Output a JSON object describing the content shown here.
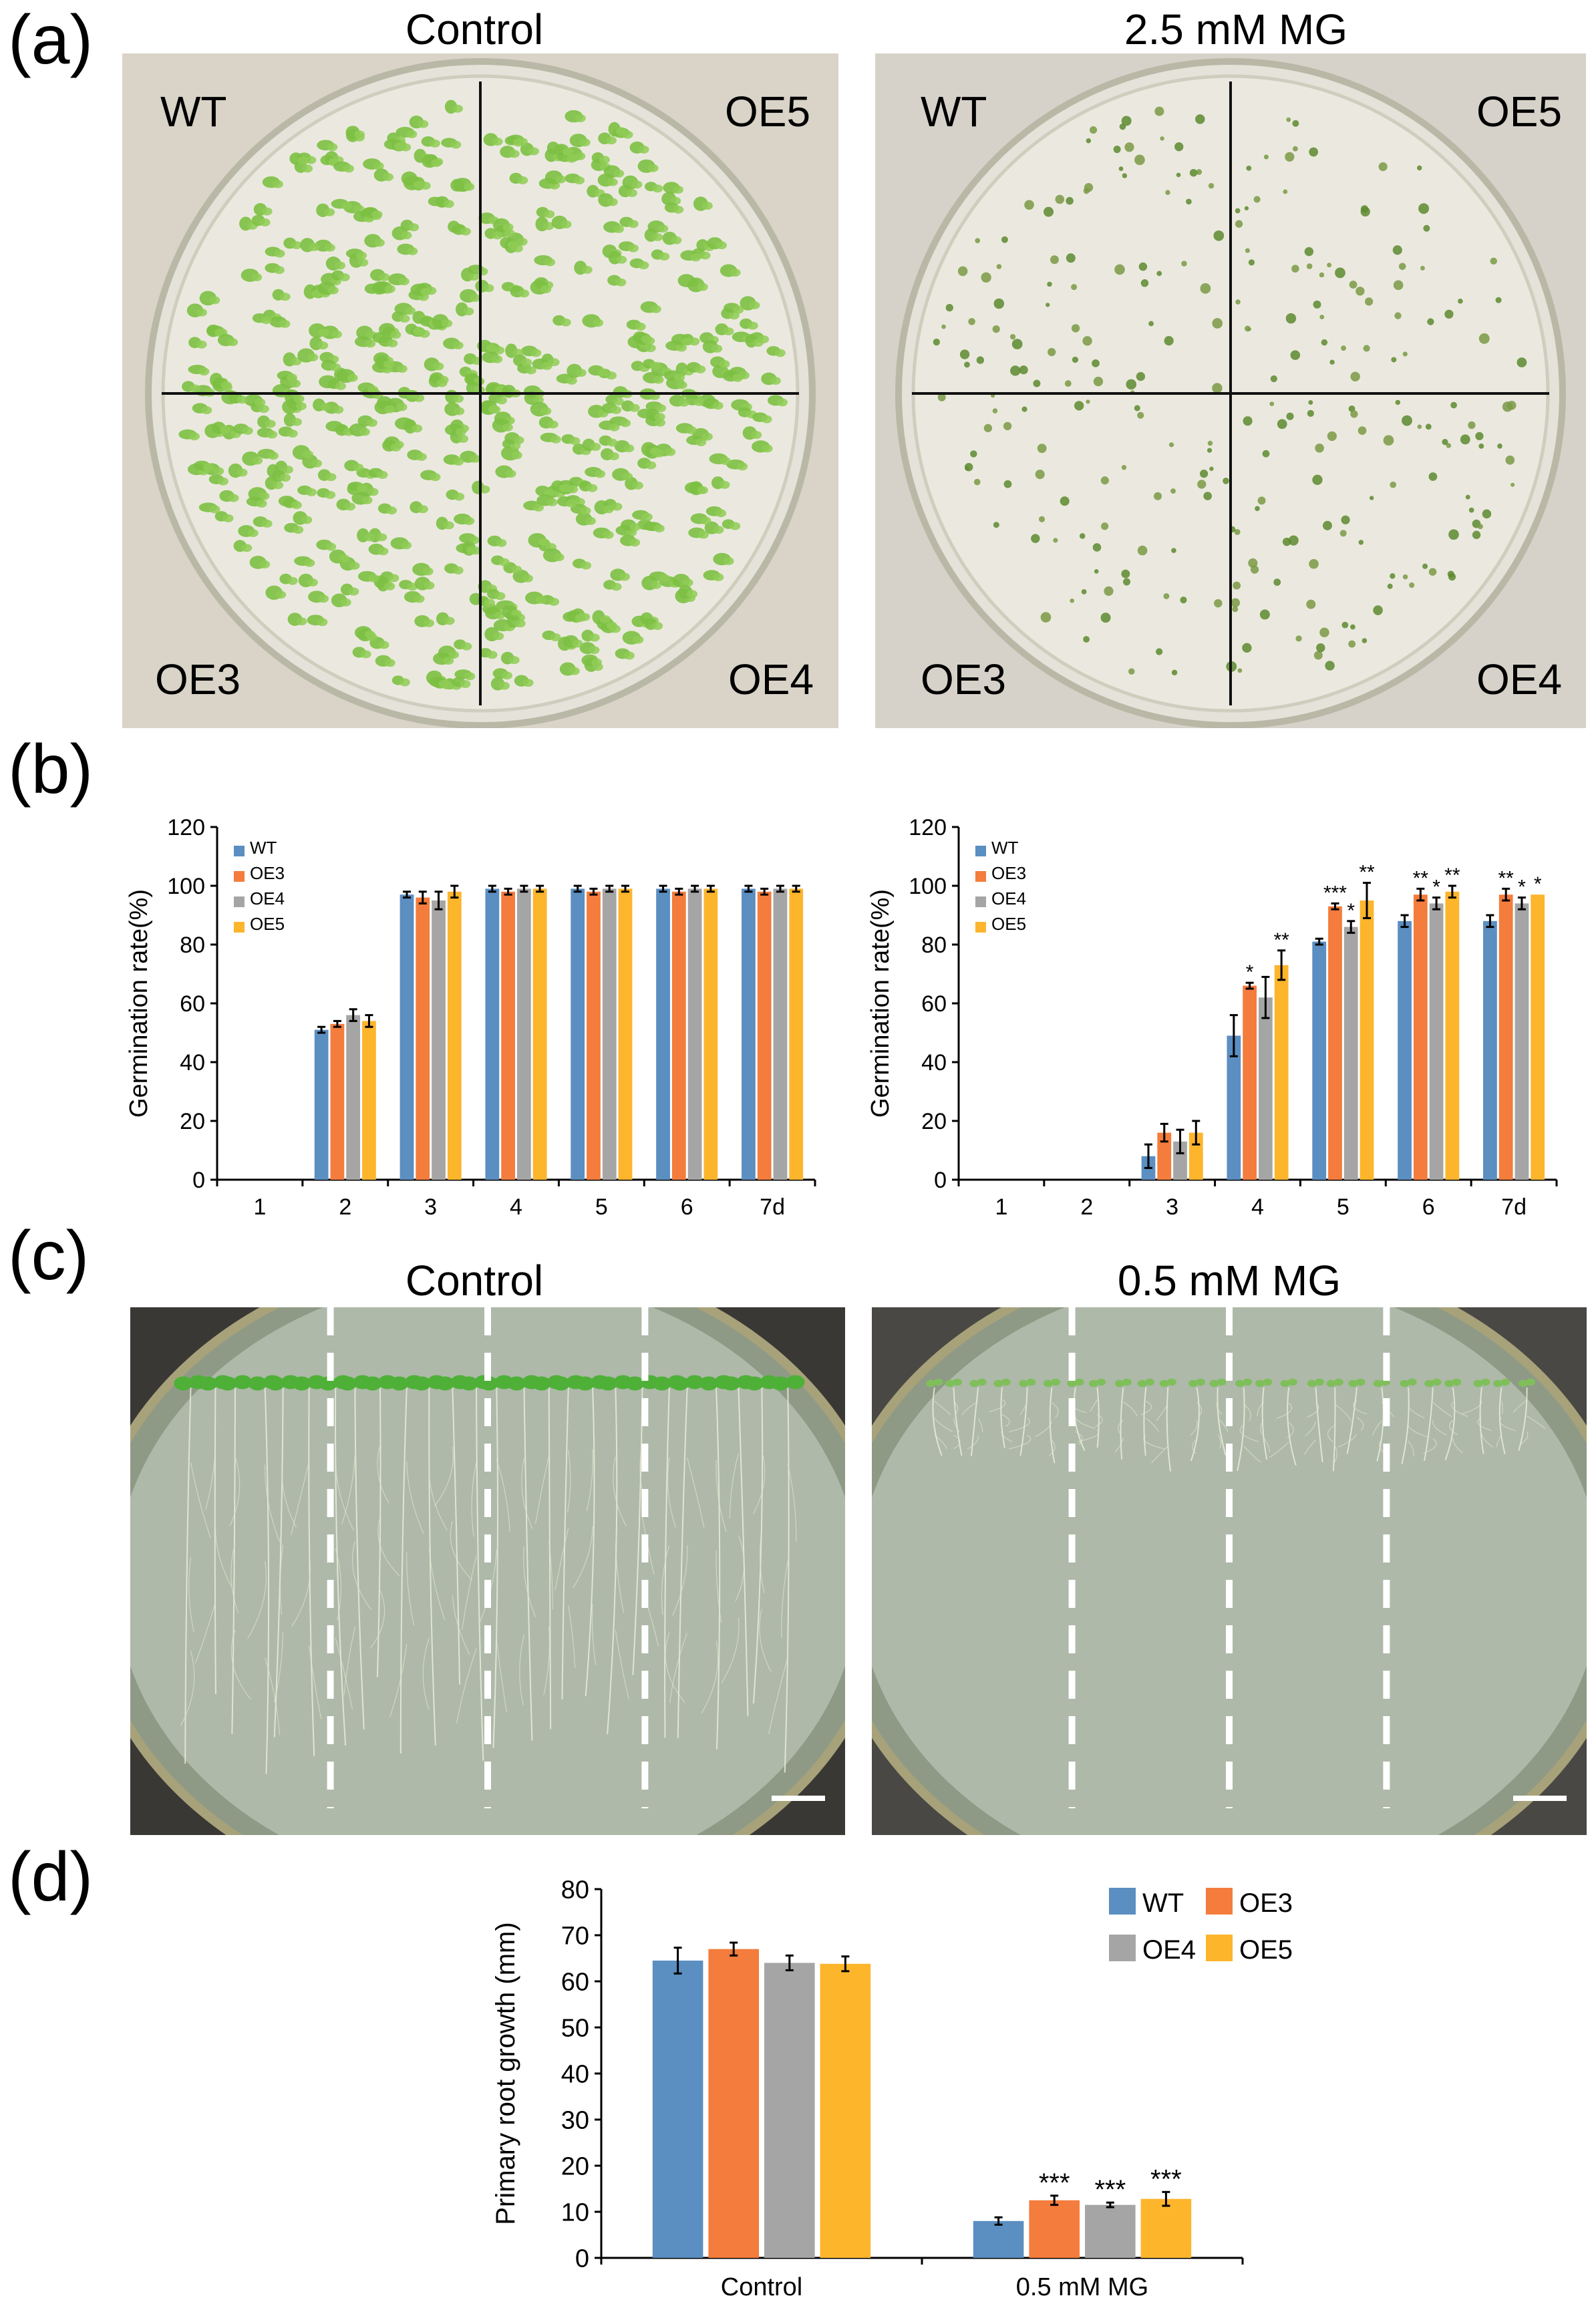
{
  "figure": {
    "panels": {
      "a": {
        "letter": "(a)",
        "plates": [
          {
            "title": "Control",
            "quadrants": [
              "WT",
              "OE5",
              "OE3",
              "OE4"
            ],
            "seedling_state": "green-expanded",
            "background": "#d9d3c8"
          },
          {
            "title": "2.5 mM MG",
            "quadrants": [
              "WT",
              "OE5",
              "OE3",
              "OE4"
            ],
            "seedling_state": "sparse-small",
            "background": "#d7d2c9"
          }
        ]
      },
      "b": {
        "letter": "(b)"
      },
      "c": {
        "letter": "(c)",
        "plates": [
          {
            "title": "Control",
            "background": "#3a3835",
            "root_state": "long"
          },
          {
            "title": "0.5 mM MG",
            "background": "#4a4844",
            "root_state": "short"
          }
        ]
      },
      "d": {
        "letter": "(d)"
      }
    },
    "colors": {
      "WT": "#5b8ec1",
      "OE3": "#f47c3c",
      "OE4": "#a5a5a5",
      "OE5": "#fdb52c",
      "plate_green": "#7cc043"
    }
  },
  "chart_data": [
    {
      "id": "b-left",
      "type": "bar",
      "categories": [
        "1",
        "2",
        "3",
        "4",
        "5",
        "6",
        "7d"
      ],
      "ylabel": "Germination rate(%)",
      "ylim": [
        0,
        120
      ],
      "yticks": [
        "0",
        "20",
        "40",
        "60",
        "80",
        "100",
        "120"
      ],
      "legend": "top-left",
      "series": [
        {
          "name": "WT",
          "values": [
            0,
            51,
            97,
            99,
            99,
            99,
            99
          ],
          "errors": [
            0,
            1,
            1,
            1,
            1,
            1,
            1
          ]
        },
        {
          "name": "OE3",
          "values": [
            0,
            53,
            96,
            98,
            98,
            98,
            98
          ],
          "errors": [
            0,
            1,
            2,
            1,
            1,
            1,
            1
          ]
        },
        {
          "name": "OE4",
          "values": [
            0,
            56,
            95,
            99,
            99,
            99,
            99
          ],
          "errors": [
            0,
            2,
            3,
            1,
            1,
            1,
            1
          ]
        },
        {
          "name": "OE5",
          "values": [
            0,
            54,
            98,
            99,
            99,
            99,
            99
          ],
          "errors": [
            0,
            2,
            2,
            1,
            1,
            1,
            1
          ]
        }
      ],
      "significance": []
    },
    {
      "id": "b-right",
      "type": "bar",
      "categories": [
        "1",
        "2",
        "3",
        "4",
        "5",
        "6",
        "7d"
      ],
      "ylabel": "Germination rate(%)",
      "ylim": [
        0,
        120
      ],
      "yticks": [
        "0",
        "20",
        "40",
        "60",
        "80",
        "100",
        "120"
      ],
      "legend": "top-left",
      "series": [
        {
          "name": "WT",
          "values": [
            0,
            0,
            8,
            49,
            81,
            88,
            88
          ],
          "errors": [
            0,
            0,
            4,
            7,
            1,
            2,
            2
          ]
        },
        {
          "name": "OE3",
          "values": [
            0,
            0,
            16,
            66,
            93,
            97,
            97
          ],
          "errors": [
            0,
            0,
            3,
            1,
            1,
            2,
            2
          ]
        },
        {
          "name": "OE4",
          "values": [
            0,
            0,
            13,
            62,
            86,
            94,
            94
          ],
          "errors": [
            0,
            0,
            4,
            7,
            2,
            2,
            2
          ]
        },
        {
          "name": "OE5",
          "values": [
            0,
            0,
            16,
            73,
            95,
            98,
            97
          ],
          "errors": [
            0,
            0,
            4,
            5,
            6,
            2,
            0
          ]
        }
      ],
      "significance": [
        {
          "category": "4",
          "series": "OE3",
          "label": "*"
        },
        {
          "category": "4",
          "series": "OE5",
          "label": "**"
        },
        {
          "category": "5",
          "series": "OE3",
          "label": "***"
        },
        {
          "category": "5",
          "series": "OE4",
          "label": "*"
        },
        {
          "category": "5",
          "series": "OE5",
          "label": "**"
        },
        {
          "category": "6",
          "series": "OE3",
          "label": "**"
        },
        {
          "category": "6",
          "series": "OE4",
          "label": "*"
        },
        {
          "category": "6",
          "series": "OE5",
          "label": "**"
        },
        {
          "category": "7d",
          "series": "OE3",
          "label": "**"
        },
        {
          "category": "7d",
          "series": "OE4",
          "label": "*"
        },
        {
          "category": "7d",
          "series": "OE5",
          "label": "*"
        }
      ]
    },
    {
      "id": "d",
      "type": "bar",
      "categories": [
        "Control",
        "0.5 mM MG"
      ],
      "ylabel": "Primary root growth (mm)",
      "ylim": [
        0,
        80
      ],
      "yticks": [
        "0",
        "10",
        "20",
        "30",
        "40",
        "50",
        "60",
        "70",
        "80"
      ],
      "legend": "top-right",
      "series": [
        {
          "name": "WT",
          "values": [
            64.5,
            8.0
          ],
          "errors": [
            2.8,
            0.8
          ]
        },
        {
          "name": "OE3",
          "values": [
            67.0,
            12.5
          ],
          "errors": [
            1.4,
            1.0
          ]
        },
        {
          "name": "OE4",
          "values": [
            64.0,
            11.5
          ],
          "errors": [
            1.6,
            0.5
          ]
        },
        {
          "name": "OE5",
          "values": [
            63.8,
            12.8
          ],
          "errors": [
            1.6,
            1.5
          ]
        }
      ],
      "significance": [
        {
          "category": "0.5 mM MG",
          "series": "OE3",
          "label": "***"
        },
        {
          "category": "0.5 mM MG",
          "series": "OE4",
          "label": "***"
        },
        {
          "category": "0.5 mM MG",
          "series": "OE5",
          "label": "***"
        }
      ]
    }
  ]
}
